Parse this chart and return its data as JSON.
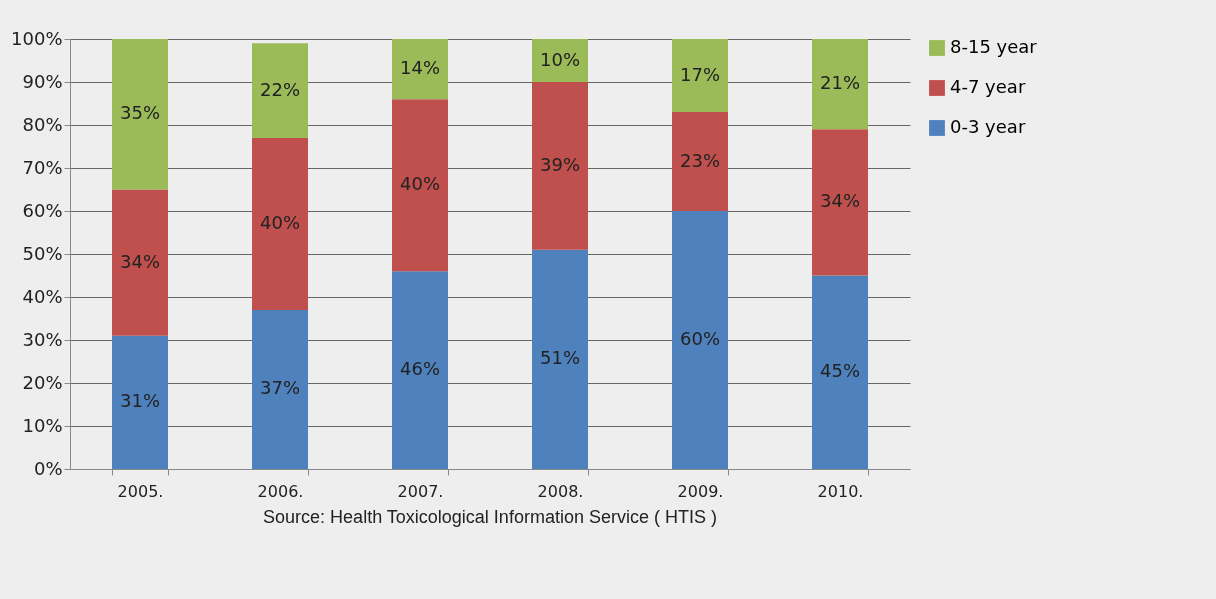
{
  "chart_data": {
    "type": "bar",
    "stacked": true,
    "categories": [
      "2005.",
      "2006.",
      "2007.",
      "2008.",
      "2009.",
      "2010."
    ],
    "series": [
      {
        "name": "0-3 year",
        "color": "#4f81bd",
        "values": [
          31,
          37,
          46,
          51,
          60,
          45
        ],
        "value_labels": [
          "31%",
          "37%",
          "46%",
          "51%",
          "60%",
          "45%"
        ]
      },
      {
        "name": "4-7 year",
        "color": "#c0504d",
        "values": [
          34,
          40,
          40,
          39,
          23,
          34
        ],
        "value_labels": [
          "34%",
          "40%",
          "40%",
          "39%",
          "23%",
          "34%"
        ]
      },
      {
        "name": "8-15 year",
        "color": "#9bbb59",
        "values": [
          35,
          22,
          14,
          10,
          17,
          21
        ],
        "value_labels": [
          "35%",
          "22%",
          "14%",
          "10%",
          "17%",
          "21%"
        ]
      }
    ],
    "ylim": [
      0,
      100
    ],
    "yticks": [
      {
        "value": 0,
        "label": "0%"
      },
      {
        "value": 10,
        "label": "10%"
      },
      {
        "value": 20,
        "label": "20%"
      },
      {
        "value": 30,
        "label": "30%"
      },
      {
        "value": 40,
        "label": "40%"
      },
      {
        "value": 50,
        "label": "50%"
      },
      {
        "value": 60,
        "label": "60%"
      },
      {
        "value": 70,
        "label": "70%"
      },
      {
        "value": 80,
        "label": "80%"
      },
      {
        "value": 90,
        "label": "90%"
      },
      {
        "value": 100,
        "label": "100%"
      }
    ],
    "grid": "y",
    "legend": "right",
    "annotations": [
      "Source: Health Toxicological Information Service ( HTIS )"
    ]
  }
}
